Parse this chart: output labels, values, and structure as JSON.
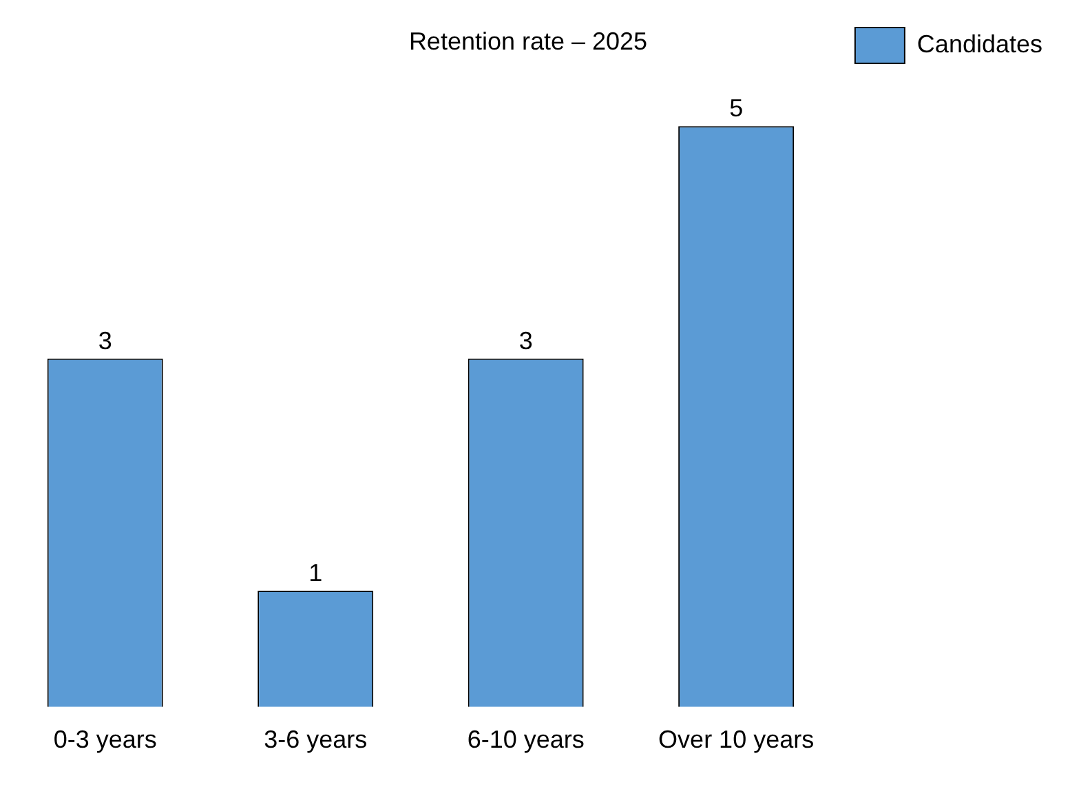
{
  "chart_data": {
    "type": "bar",
    "title": "Retention rate – 2025",
    "categories": [
      "0-3 years",
      "3-6 years",
      "6-10 years",
      "Over 10 years"
    ],
    "series": [
      {
        "name": "Candidates",
        "color": "#5b9bd5",
        "values": [
          3,
          1,
          3,
          5
        ]
      }
    ],
    "data_labels": true,
    "legend": "top right",
    "grid": false
  }
}
